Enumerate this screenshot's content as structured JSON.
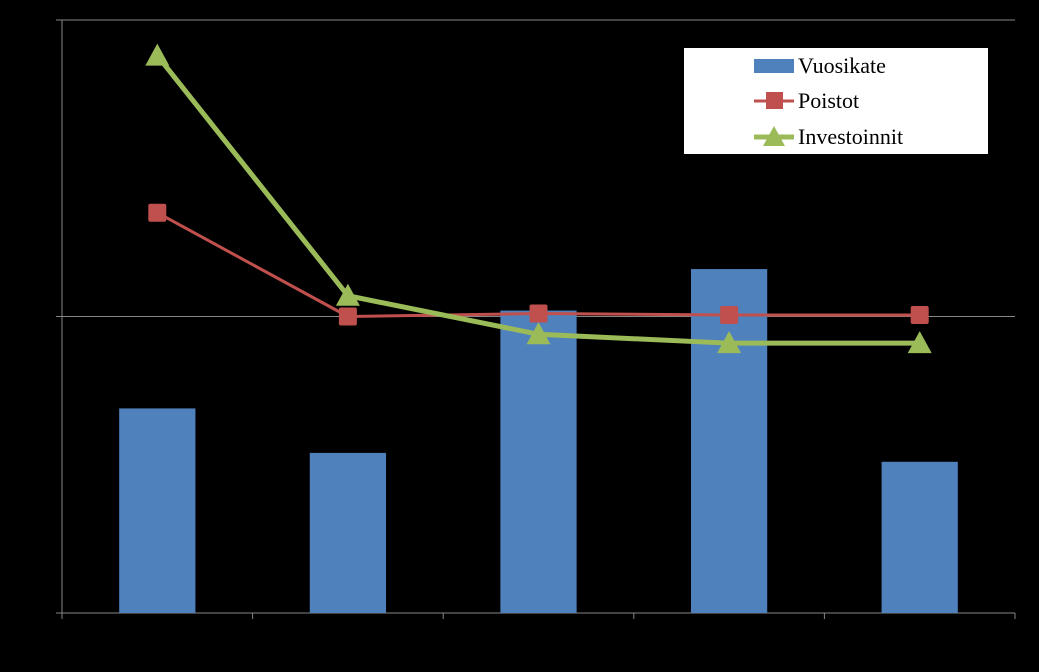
{
  "chart_data": {
    "type": "bar",
    "categories": [
      "",
      "",
      "",
      "",
      ""
    ],
    "ylim": [
      0,
      2
    ],
    "yticks": [
      0,
      1,
      2
    ],
    "grid": true,
    "legend_position": "top-right",
    "series": [
      {
        "name": "Vuosikate",
        "kind": "bar",
        "color": "#4F81BD",
        "values": [
          0.69,
          0.54,
          1.02,
          1.16,
          0.51
        ]
      },
      {
        "name": "Poistot",
        "kind": "line",
        "marker": "square",
        "color": "#C0504D",
        "values": [
          1.35,
          1.0,
          1.01,
          1.005,
          1.005
        ]
      },
      {
        "name": "Investoinnit",
        "kind": "line",
        "marker": "triangle",
        "color": "#9BBB59",
        "values": [
          1.88,
          1.07,
          0.94,
          0.91,
          0.91
        ]
      }
    ]
  }
}
